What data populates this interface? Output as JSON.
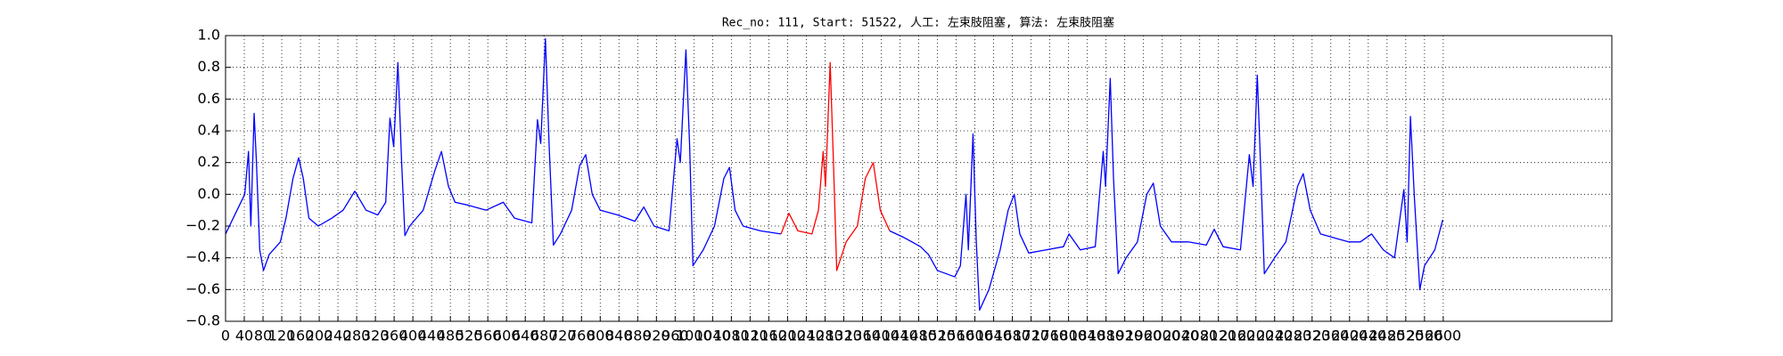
{
  "chart_data": {
    "type": "line",
    "title": "Rec_no: 111, Start: 51522, 人工: 左束肢阻塞, 算法: 左束肢阻塞",
    "xlim": [
      0,
      2960
    ],
    "xticks": [
      0,
      40,
      80,
      120,
      160,
      200,
      240,
      280,
      320,
      360,
      400,
      440,
      480,
      520,
      560,
      600,
      640,
      680,
      720,
      760,
      800,
      840,
      880,
      920,
      960,
      1000,
      1040,
      1080,
      1120,
      1160,
      1200,
      1240,
      1280,
      1320,
      1360,
      1400,
      1440,
      1480,
      1520,
      1560,
      1600,
      1640,
      1680,
      1720,
      1760,
      1800,
      1840,
      1880,
      1920,
      1960,
      2000,
      2040,
      2080,
      2120,
      2160,
      2200,
      2240,
      2280,
      2320,
      2360,
      2400,
      2440,
      2480,
      2520,
      2560,
      2600
    ],
    "ylim": [
      -0.8,
      1.0
    ],
    "yticks": [
      {
        "value": -0.8,
        "label": "−0.8"
      },
      {
        "value": -0.6,
        "label": "−0.6"
      },
      {
        "value": -0.4,
        "label": "−0.4"
      },
      {
        "value": -0.2,
        "label": "−0.2"
      },
      {
        "value": 0.0,
        "label": "0.0"
      },
      {
        "value": 0.2,
        "label": "0.2"
      },
      {
        "value": 0.4,
        "label": "0.4"
      },
      {
        "value": 0.6,
        "label": "0.6"
      },
      {
        "value": 0.8,
        "label": "0.8"
      },
      {
        "value": 1.0,
        "label": "1.0"
      }
    ],
    "grid": true,
    "series": [
      {
        "color": "#0000ff",
        "x": [
          0,
          41,
          49,
          54,
          61,
          66,
          73,
          81,
          93,
          117,
          129,
          144,
          156,
          166,
          178,
          198,
          227,
          251,
          276,
          300,
          325,
          342,
          351,
          359,
          368,
          376,
          383,
          393,
          422,
          447,
          461,
          476,
          490,
          520,
          556,
          593,
          617,
          654,
          666,
          673,
          683,
          691,
          700,
          715,
          739,
          756,
          769,
          783,
          800,
          837,
          874,
          893,
          915,
          947,
          964,
          971,
          983,
          991,
          998,
          1020,
          1044,
          1064,
          1076,
          1088,
          1105,
          1142,
          1186
        ],
        "values": [
          -0.25,
          0.0,
          0.27,
          -0.2,
          0.51,
          0.2,
          -0.35,
          -0.48,
          -0.38,
          -0.3,
          -0.15,
          0.1,
          0.23,
          0.1,
          -0.15,
          -0.2,
          -0.15,
          -0.1,
          0.02,
          -0.1,
          -0.13,
          -0.05,
          0.48,
          0.3,
          0.83,
          0.2,
          -0.26,
          -0.2,
          -0.1,
          0.15,
          0.27,
          0.05,
          -0.05,
          -0.07,
          -0.1,
          -0.05,
          -0.15,
          -0.18,
          0.47,
          0.32,
          0.98,
          0.3,
          -0.32,
          -0.25,
          -0.1,
          0.18,
          0.25,
          0.0,
          -0.1,
          -0.13,
          -0.17,
          -0.08,
          -0.2,
          -0.23,
          0.35,
          0.2,
          0.91,
          0.3,
          -0.45,
          -0.35,
          -0.2,
          0.1,
          0.17,
          -0.1,
          -0.2,
          -0.23,
          -0.25
        ]
      },
      {
        "color": "#ff0000",
        "x": [
          1186,
          1203,
          1222,
          1252,
          1266,
          1276,
          1281,
          1291,
          1298,
          1305,
          1325,
          1349,
          1366,
          1383,
          1398,
          1418
        ],
        "values": [
          -0.25,
          -0.12,
          -0.23,
          -0.25,
          -0.1,
          0.27,
          0.05,
          0.83,
          0.2,
          -0.48,
          -0.3,
          -0.2,
          0.1,
          0.2,
          -0.1,
          -0.23
        ]
      },
      {
        "color": "#0000ff",
        "x": [
          1418,
          1447,
          1484,
          1501,
          1520,
          1557,
          1569,
          1581,
          1586,
          1596,
          1603,
          1610,
          1630,
          1654,
          1671,
          1684,
          1696,
          1715,
          1752,
          1789,
          1801,
          1825,
          1857,
          1874,
          1879,
          1889,
          1896,
          1906,
          1923,
          1947,
          1967,
          1981,
          1996,
          2020,
          2057,
          2094,
          2111,
          2130,
          2167,
          2186,
          2194,
          2203,
          2211,
          2218,
          2240,
          2264,
          2289,
          2301,
          2316,
          2338,
          2374,
          2399,
          2423,
          2447,
          2472,
          2496,
          2516,
          2523,
          2530,
          2538,
          2550,
          2560,
          2582,
          2599
        ],
        "values": [
          -0.23,
          -0.27,
          -0.33,
          -0.38,
          -0.48,
          -0.52,
          -0.45,
          0.0,
          -0.35,
          0.38,
          -0.3,
          -0.73,
          -0.6,
          -0.35,
          -0.1,
          0.0,
          -0.25,
          -0.37,
          -0.35,
          -0.33,
          -0.25,
          -0.35,
          -0.33,
          0.27,
          0.05,
          0.73,
          0.1,
          -0.5,
          -0.4,
          -0.3,
          0.0,
          0.07,
          -0.2,
          -0.3,
          -0.3,
          -0.32,
          -0.22,
          -0.33,
          -0.35,
          0.25,
          0.05,
          0.75,
          0.1,
          -0.5,
          -0.4,
          -0.3,
          0.05,
          0.13,
          -0.1,
          -0.25,
          -0.28,
          -0.3,
          -0.3,
          -0.25,
          -0.35,
          -0.4,
          0.03,
          -0.3,
          0.49,
          0.0,
          -0.6,
          -0.45,
          -0.35,
          -0.16
        ]
      }
    ]
  }
}
